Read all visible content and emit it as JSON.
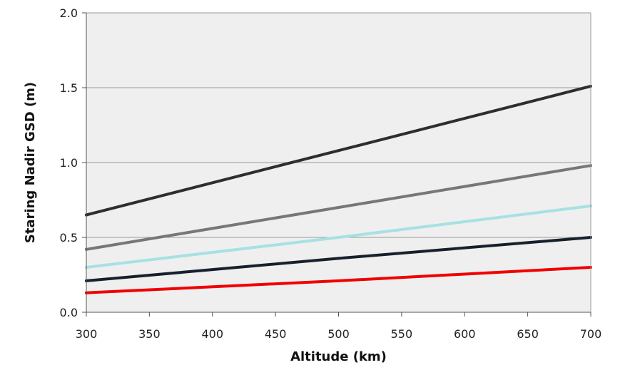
{
  "chart_data": {
    "type": "line",
    "title": "",
    "xlabel": "Altitude (km)",
    "ylabel": "Staring Nadir GSD (m)",
    "xlim": [
      300,
      700
    ],
    "ylim": [
      0.0,
      2.0
    ],
    "x_ticks": [
      "300",
      "350",
      "400",
      "450",
      "500",
      "550",
      "600",
      "650",
      "700"
    ],
    "y_ticks": [
      "0.0",
      "0.5",
      "1.0",
      "1.5",
      "2.0"
    ],
    "grid": "horizontal",
    "legend": "none",
    "plot_background": "#efefef",
    "series": [
      {
        "color": "#2b302e",
        "x": [
          300,
          500,
          700
        ],
        "y": [
          0.65,
          1.08,
          1.51
        ]
      },
      {
        "color": "#777777",
        "x": [
          300,
          500,
          700
        ],
        "y": [
          0.42,
          0.7,
          0.98
        ]
      },
      {
        "color": "#a6e1e3",
        "x": [
          300,
          500,
          700
        ],
        "y": [
          0.3,
          0.5,
          0.71
        ]
      },
      {
        "color": "#18202c",
        "x": [
          300,
          500,
          700
        ],
        "y": [
          0.21,
          0.36,
          0.5
        ]
      },
      {
        "color": "#f00000",
        "x": [
          300,
          500,
          700
        ],
        "y": [
          0.13,
          0.21,
          0.3
        ]
      }
    ]
  }
}
